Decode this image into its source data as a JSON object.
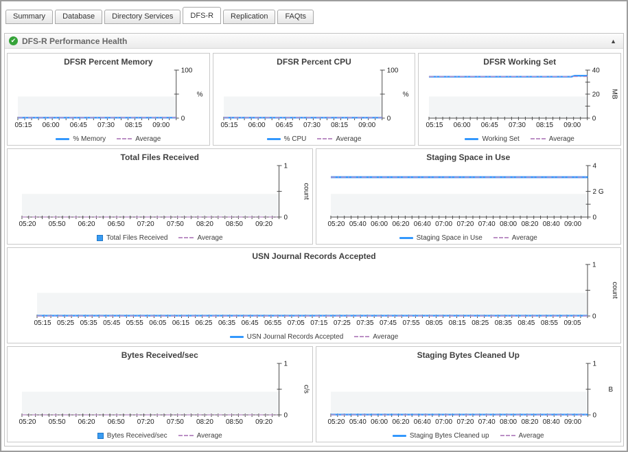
{
  "tabs": {
    "items": [
      {
        "label": "Summary",
        "active": false
      },
      {
        "label": "Database",
        "active": false
      },
      {
        "label": "Directory Services",
        "active": false
      },
      {
        "label": "DFS-R",
        "active": true
      },
      {
        "label": "Replication",
        "active": false
      },
      {
        "label": "FAQts",
        "active": false
      }
    ]
  },
  "panel": {
    "title": "DFS-R Performance Health",
    "status_icon": "green-check",
    "status_glyph": "✔",
    "collapse_glyph": "▲"
  },
  "average_label": "Average",
  "colors": {
    "series": "#3398fd",
    "average": "#bb8fc5",
    "axis": "#4d4d4d",
    "plot_band": "#f3f5f6"
  },
  "chart_data": [
    {
      "type": "line",
      "title": "DFSR Percent Memory",
      "series_name": "% Memory",
      "unit": "%",
      "unit_rotated": false,
      "ylim": [
        0,
        100
      ],
      "y_ticks": [
        {
          "value": 0,
          "label": "0"
        },
        {
          "value": 50,
          "label": ""
        },
        {
          "value": 100,
          "label": "100"
        }
      ],
      "x_labels": [
        "05:15",
        "06:00",
        "06:45",
        "07:30",
        "08:15",
        "09:00"
      ],
      "points": [
        [
          0,
          1
        ],
        [
          1,
          1
        ]
      ],
      "average": 1,
      "legend_swatch": "line"
    },
    {
      "type": "line",
      "title": "DFSR Percent CPU",
      "series_name": "% CPU",
      "unit": "%",
      "unit_rotated": false,
      "ylim": [
        0,
        100
      ],
      "y_ticks": [
        {
          "value": 0,
          "label": "0"
        },
        {
          "value": 50,
          "label": ""
        },
        {
          "value": 100,
          "label": "100"
        }
      ],
      "x_labels": [
        "05:15",
        "06:00",
        "06:45",
        "07:30",
        "08:15",
        "09:00"
      ],
      "points": [
        [
          0,
          1
        ],
        [
          1,
          1
        ]
      ],
      "average": 1,
      "legend_swatch": "line"
    },
    {
      "type": "line",
      "title": "DFSR Working Set",
      "series_name": "Working Set",
      "unit": "MB",
      "unit_rotated": true,
      "ylim": [
        0,
        40
      ],
      "y_ticks": [
        {
          "value": 0,
          "label": "0"
        },
        {
          "value": 10,
          "label": ""
        },
        {
          "value": 20,
          "label": "20"
        },
        {
          "value": 30,
          "label": ""
        },
        {
          "value": 40,
          "label": "40"
        }
      ],
      "x_labels": [
        "05:15",
        "06:00",
        "06:45",
        "07:30",
        "08:15",
        "09:00"
      ],
      "points": [
        [
          0,
          34.5
        ],
        [
          0.9,
          34.5
        ],
        [
          0.92,
          35.3
        ],
        [
          1,
          35.3
        ]
      ],
      "average": 34.6,
      "legend_swatch": "line"
    },
    {
      "type": "bar",
      "title": "Total Files Received",
      "series_name": "Total Files Received",
      "unit": "count",
      "unit_rotated": true,
      "ylim": [
        0,
        1
      ],
      "y_ticks": [
        {
          "value": 0,
          "label": "0"
        },
        {
          "value": 0.5,
          "label": ""
        },
        {
          "value": 1,
          "label": "1"
        }
      ],
      "x_labels": [
        "05:20",
        "05:50",
        "06:20",
        "06:50",
        "07:20",
        "07:50",
        "08:20",
        "08:50",
        "09:20"
      ],
      "points": [],
      "average": 0,
      "legend_swatch": "bar"
    },
    {
      "type": "line",
      "title": "Staging Space in Use",
      "series_name": "Staging Space in Use",
      "unit": "",
      "unit_rotated": false,
      "ylim": [
        0,
        4
      ],
      "y_ticks": [
        {
          "value": 0,
          "label": "0"
        },
        {
          "value": 1,
          "label": ""
        },
        {
          "value": 2,
          "label": "2 G"
        },
        {
          "value": 4,
          "label": "4"
        }
      ],
      "x_labels": [
        "05:20",
        "05:40",
        "06:00",
        "06:20",
        "06:40",
        "07:00",
        "07:20",
        "07:40",
        "08:00",
        "08:20",
        "08:40",
        "09:00"
      ],
      "points": [
        [
          0,
          3.1
        ],
        [
          1,
          3.1
        ]
      ],
      "average": 3.1,
      "line_width": 2.8,
      "legend_swatch": "line"
    },
    {
      "type": "line",
      "title": "USN Journal Records Accepted",
      "series_name": "USN Journal Records Accepted",
      "unit": "count",
      "unit_rotated": true,
      "ylim": [
        0,
        1
      ],
      "y_ticks": [
        {
          "value": 0,
          "label": "0"
        },
        {
          "value": 0.5,
          "label": ""
        },
        {
          "value": 1,
          "label": "1"
        }
      ],
      "x_labels": [
        "05:15",
        "05:25",
        "05:35",
        "05:45",
        "05:55",
        "06:05",
        "06:15",
        "06:25",
        "06:35",
        "06:45",
        "06:55",
        "07:05",
        "07:15",
        "07:25",
        "07:35",
        "07:45",
        "07:55",
        "08:05",
        "08:15",
        "08:25",
        "08:35",
        "08:45",
        "08:55",
        "09:05"
      ],
      "points": [
        [
          0,
          0.005
        ],
        [
          1,
          0.005
        ]
      ],
      "average": 0,
      "legend_swatch": "line"
    },
    {
      "type": "bar",
      "title": "Bytes Received/sec",
      "series_name": "Bytes Received/sec",
      "unit": "c/s",
      "unit_rotated": true,
      "ylim": [
        0,
        1
      ],
      "y_ticks": [
        {
          "value": 0,
          "label": "0"
        },
        {
          "value": 0.5,
          "label": ""
        },
        {
          "value": 1,
          "label": "1"
        }
      ],
      "x_labels": [
        "05:20",
        "05:50",
        "06:20",
        "06:50",
        "07:20",
        "07:50",
        "08:20",
        "08:50",
        "09:20"
      ],
      "points": [],
      "average": 0,
      "legend_swatch": "bar"
    },
    {
      "type": "line",
      "title": "Staging Bytes Cleaned Up",
      "series_name": "Staging Bytes Cleaned up",
      "unit": "B",
      "unit_rotated": false,
      "ylim": [
        0,
        1
      ],
      "y_ticks": [
        {
          "value": 0,
          "label": "0"
        },
        {
          "value": 0.5,
          "label": ""
        },
        {
          "value": 1,
          "label": "1"
        }
      ],
      "x_labels": [
        "05:20",
        "05:40",
        "06:00",
        "06:20",
        "06:40",
        "07:00",
        "07:20",
        "07:40",
        "08:00",
        "08:20",
        "08:40",
        "09:00"
      ],
      "points": [
        [
          0,
          0.005
        ],
        [
          1,
          0.005
        ]
      ],
      "average": 0,
      "legend_swatch": "line"
    }
  ]
}
